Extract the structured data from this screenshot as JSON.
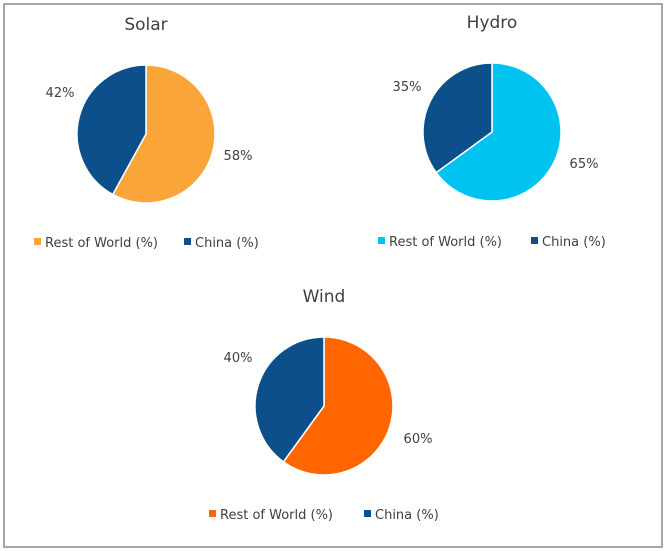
{
  "chart_data": [
    {
      "type": "pie",
      "title": "Solar",
      "categories": [
        "Rest of World (%)",
        "China (%)"
      ],
      "values": [
        58,
        42
      ],
      "data_labels": [
        "58%",
        "42%"
      ],
      "colors": [
        "#F9A53A",
        "#0C4F8A"
      ],
      "legend": "bottom"
    },
    {
      "type": "pie",
      "title": "Hydro",
      "categories": [
        "Rest of World (%)",
        "China (%)"
      ],
      "values": [
        65,
        35
      ],
      "data_labels": [
        "65%",
        "35%"
      ],
      "colors": [
        "#00C3F0",
        "#0C4F8A"
      ],
      "legend": "bottom"
    },
    {
      "type": "pie",
      "title": "Wind",
      "categories": [
        "Rest of World (%)",
        "China (%)"
      ],
      "values": [
        60,
        40
      ],
      "data_labels": [
        "60%",
        "40%"
      ],
      "colors": [
        "#FF6600",
        "#0C4F8A"
      ],
      "legend": "bottom"
    }
  ]
}
